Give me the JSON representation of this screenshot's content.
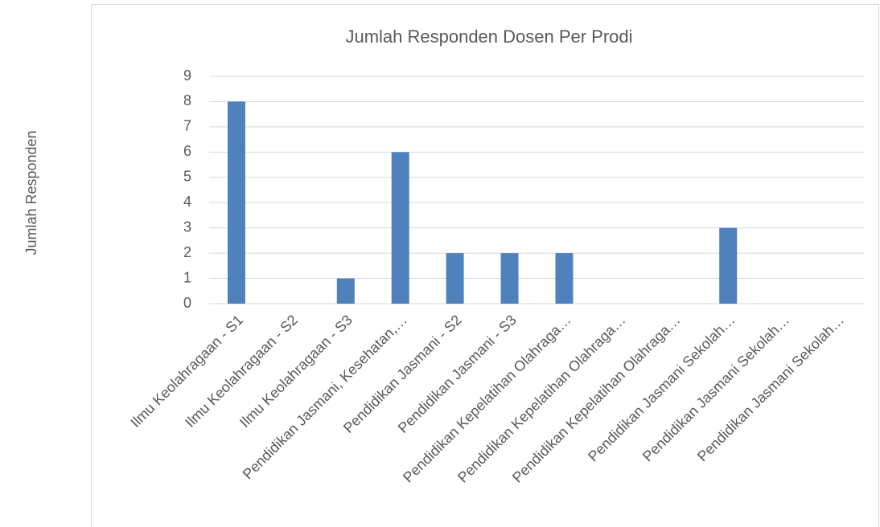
{
  "chart_data": {
    "type": "bar",
    "title": "Jumlah Responden Dosen Per Prodi",
    "y_label": "Jumlah Responden",
    "categories": [
      "Ilmu Keolahragaan - S1",
      "Ilmu Keolahragaan - S2",
      "Ilmu Keolahragaan - S3",
      "Pendidikan Jasmani, Kesehatan,…",
      "Pendidikan Jasmani - S2",
      "Pendidikan Jasmani - S3",
      "Pendidikan Kepelatihan Olahraga…",
      "Pendidikan Kepelatihan Olahraga…",
      "Pendidikan Kepelatihan Olahraga…",
      "Pendidikan Jasmani Sekolah…",
      "Pendidikan Jasmani Sekolah…",
      "Pendidikan Jasmani Sekolah…"
    ],
    "values": [
      8,
      0,
      1,
      6,
      2,
      2,
      2,
      0,
      0,
      3,
      0,
      0
    ],
    "color": "#4f81bd",
    "ylim": [
      0,
      9
    ],
    "yticks": [
      0,
      1,
      2,
      3,
      4,
      5,
      6,
      7,
      8,
      9
    ],
    "grid": true
  }
}
